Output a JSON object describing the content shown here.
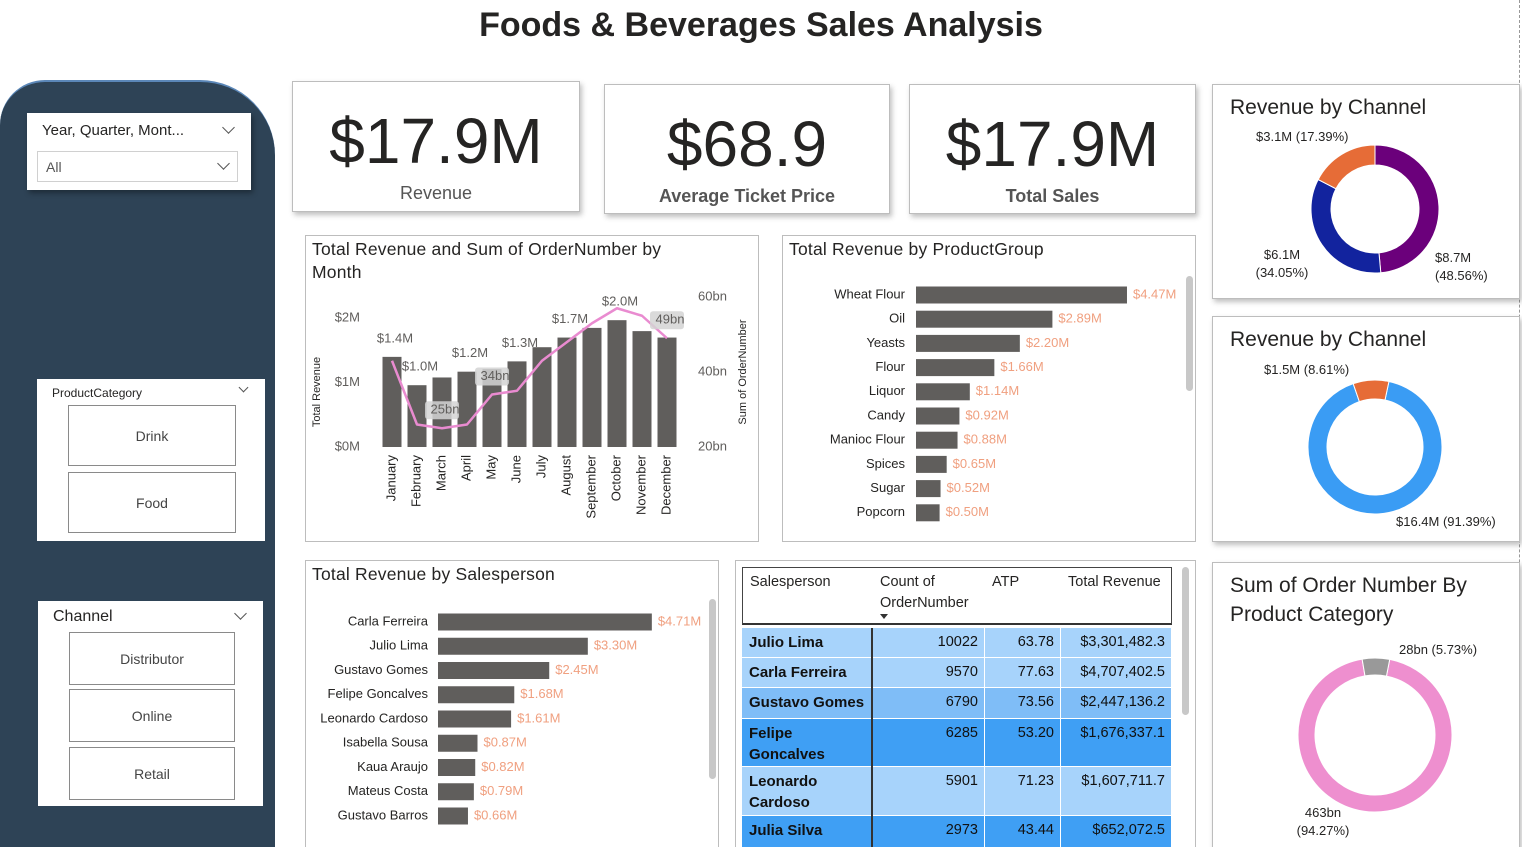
{
  "title": "Foods & Beverages Sales Analysis",
  "slicers": {
    "date": {
      "label": "Year, Quarter, Mont...",
      "value": "All"
    },
    "product_category": {
      "label": "ProductCategory",
      "options": [
        "Drink",
        "Food"
      ]
    },
    "channel": {
      "label": "Channel",
      "options": [
        "Distributor",
        "Online",
        "Retail"
      ]
    }
  },
  "kpis": [
    {
      "value": "$17.9M",
      "label": "Revenue"
    },
    {
      "value": "$68.9",
      "label": "Average Ticket Price"
    },
    {
      "value": "$17.9M",
      "label": "Total Sales"
    }
  ],
  "table": {
    "columns": [
      "Salesperson",
      "Count of OrderNumber",
      "ATP",
      "Total Revenue"
    ],
    "rows": [
      [
        "Julio Lima",
        "10022",
        "63.78",
        "$3,301,482.3"
      ],
      [
        "Carla Ferreira",
        "9570",
        "77.63",
        "$4,707,402.5"
      ],
      [
        "Gustavo Gomes",
        "6790",
        "73.56",
        "$2,447,136.2"
      ],
      [
        "Felipe Goncalves",
        "6285",
        "53.20",
        "$1,676,337.1"
      ],
      [
        "Leonardo Cardoso",
        "5901",
        "71.23",
        "$1,607,711.7"
      ],
      [
        "Julia Silva",
        "2973",
        "43.44",
        "$652,072.5"
      ]
    ]
  },
  "chart_data": [
    {
      "type": "combo",
      "title": "Total Revenue and Sum of OrderNumber by Month",
      "y_label": "Total Revenue",
      "y2_label": "Sum of OrderNumber",
      "categories": [
        "January",
        "February",
        "March",
        "April",
        "May",
        "June",
        "July",
        "August",
        "September",
        "October",
        "November",
        "December"
      ],
      "series": [
        {
          "type": "bar",
          "color": "#605e5c",
          "values": [
            1.4,
            0.96,
            1.08,
            1.17,
            1.21,
            1.33,
            1.55,
            1.7,
            1.85,
            1.97,
            1.8,
            1.7
          ],
          "value_labels": [
            "$1.4M",
            "$1.0M",
            null,
            "$1.2M",
            null,
            "$1.3M",
            null,
            "$1.7M",
            null,
            "$2.0M",
            null,
            null
          ]
        },
        {
          "type": "line",
          "axis": "y2",
          "color": "#e98bd0",
          "values": [
            43,
            26,
            25,
            26,
            34,
            35,
            43,
            48,
            53,
            57,
            55,
            49
          ],
          "value_labels": [
            null,
            null,
            "25bn",
            null,
            "34bn",
            null,
            null,
            null,
            null,
            null,
            null,
            "49bn"
          ]
        }
      ],
      "ylim": [
        0,
        2.33
      ],
      "yticks": [
        {
          "value": 0,
          "label": "$0M"
        },
        {
          "value": 1,
          "label": "$1M"
        },
        {
          "value": 2,
          "label": "$2M"
        }
      ],
      "y2lim": [
        20,
        60
      ],
      "y2ticks": [
        {
          "value": 20,
          "label": "20bn"
        },
        {
          "value": 40,
          "label": "40bn"
        },
        {
          "value": 60,
          "label": "60bn"
        }
      ]
    },
    {
      "type": "hbar",
      "title": "Total Revenue by ProductGroup",
      "categories": [
        "Wheat Flour",
        "Oil",
        "Yeasts",
        "Flour",
        "Liquor",
        "Candy",
        "Manioc Flour",
        "Spices",
        "Sugar",
        "Popcorn"
      ],
      "values": [
        4.47,
        2.89,
        2.2,
        1.66,
        1.14,
        0.92,
        0.88,
        0.65,
        0.52,
        0.5
      ],
      "value_labels": [
        "$4.47M",
        "$2.89M",
        "$2.20M",
        "$1.66M",
        "$1.14M",
        "$0.92M",
        "$0.88M",
        "$0.65M",
        "$0.52M",
        "$0.50M"
      ],
      "color": "#605e5c",
      "label_color": "#f0a080"
    },
    {
      "type": "hbar",
      "title": "Total Revenue by Salesperson",
      "categories": [
        "Carla Ferreira",
        "Julio Lima",
        "Gustavo Gomes",
        "Felipe Goncalves",
        "Leonardo Cardoso",
        "Isabella Sousa",
        "Kaua Araujo",
        "Mateus Costa",
        "Gustavo Barros"
      ],
      "values": [
        4.71,
        3.3,
        2.45,
        1.68,
        1.61,
        0.87,
        0.82,
        0.79,
        0.66
      ],
      "value_labels": [
        "$4.71M",
        "$3.30M",
        "$2.45M",
        "$1.68M",
        "$1.61M",
        "$0.87M",
        "$0.82M",
        "$0.79M",
        "$0.66M"
      ],
      "color": "#605e5c",
      "label_color": "#f0a080"
    },
    {
      "type": "donut",
      "title": "Revenue by Channel",
      "values": [
        48.56,
        34.05,
        17.39
      ],
      "value_labels": [
        "$8.7M (48.56%)",
        "$6.1M (34.05%)",
        "$3.1M (17.39%)"
      ],
      "colors": [
        "#6b007b",
        "#12239e",
        "#e66c37"
      ]
    },
    {
      "type": "donut",
      "title": "Revenue by Channel",
      "values": [
        91.39,
        8.61
      ],
      "value_labels": [
        "$16.4M (91.39%)",
        "$1.5M (8.61%)"
      ],
      "colors": [
        "#3a9cf4",
        "#e66c37"
      ]
    },
    {
      "type": "donut",
      "title": "Sum of Order Number By Product Category",
      "values": [
        94.27,
        5.73
      ],
      "value_labels": [
        "463bn (94.27%)",
        "28bn (5.73%)"
      ],
      "colors": [
        "#ee8fcf",
        "#999999"
      ]
    }
  ]
}
